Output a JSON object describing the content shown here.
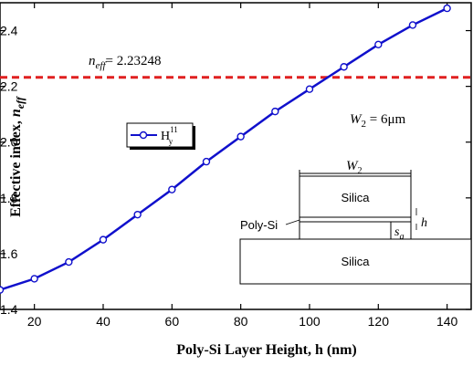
{
  "chart_data": {
    "type": "line",
    "xlabel": "Poly-Si Layer Height, h (nm)",
    "ylabel": "Effective index, ",
    "ylabel_sub": "n",
    "ylabel_subscript": "eff",
    "xlim": [
      10,
      147
    ],
    "ylim": [
      1.4,
      2.5
    ],
    "x_ticks": [
      20,
      40,
      60,
      80,
      100,
      120,
      140
    ],
    "y_ticks": [
      1.4,
      1.6,
      1.8,
      2.0,
      2.2,
      2.4
    ],
    "series": [
      {
        "name": "H",
        "name_sup": "11",
        "name_sub": "y",
        "color": "#1010cc",
        "x": [
          10,
          20,
          30,
          40,
          50,
          60,
          70,
          80,
          90,
          100,
          110,
          120,
          130,
          140
        ],
        "y": [
          1.47,
          1.51,
          1.57,
          1.65,
          1.74,
          1.83,
          1.93,
          2.02,
          2.11,
          2.19,
          2.27,
          2.35,
          2.42,
          2.48
        ]
      }
    ],
    "reference_line": {
      "y": 2.23248,
      "color": "#e02020",
      "style": "dashed",
      "label_n": "n",
      "label_sub": "eff",
      "label_value": "= 2.23248"
    },
    "annotations": {
      "w2_label": "W",
      "w2_sub": "2",
      "w2_value": " = 6μm"
    },
    "inset": {
      "top_layer": "Silica",
      "bottom_layer": "Silica",
      "poly_label": "Poly-Si",
      "width_label": "W",
      "width_sub": "2",
      "height_label": "h",
      "gap_label": "s",
      "gap_sub": "g"
    },
    "grid": false,
    "legend_position": "upper-left"
  }
}
